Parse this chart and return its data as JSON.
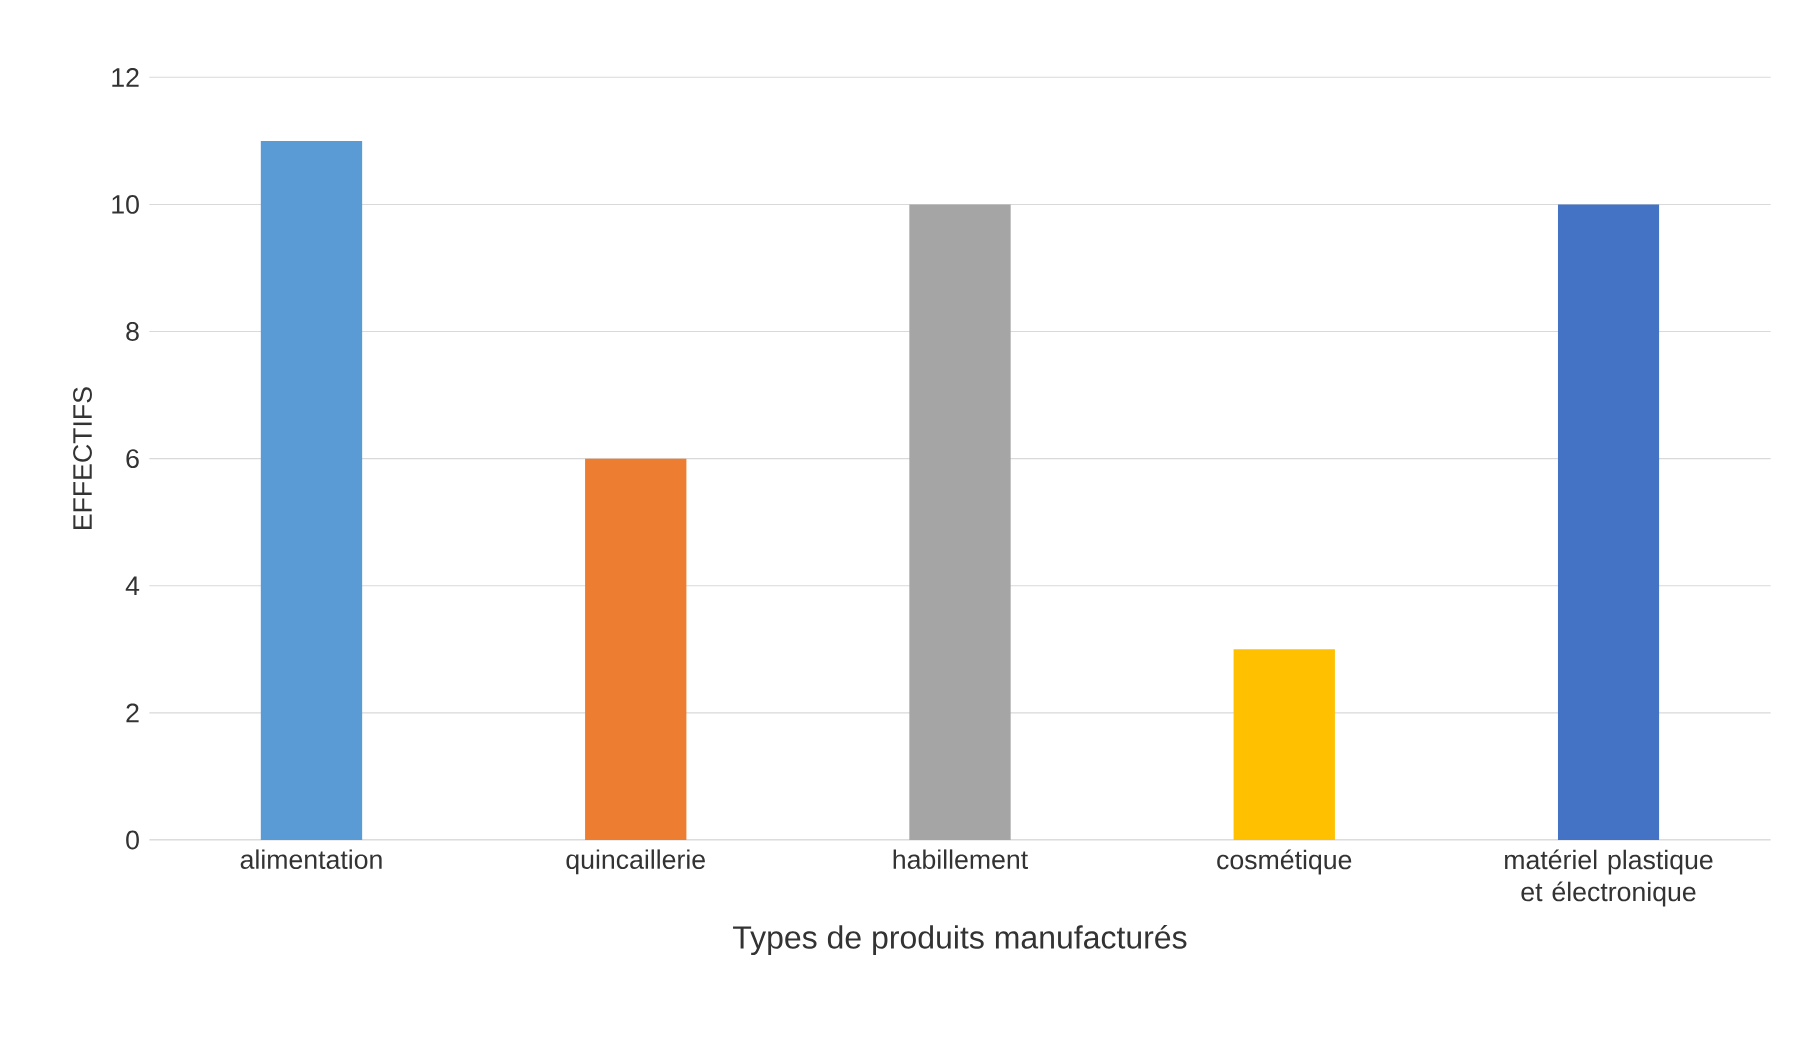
{
  "chart_data": {
    "type": "bar",
    "xlabel": "Types de produits manufacturés",
    "ylabel": "EFFECTIFS",
    "categories": [
      "alimentation",
      "quincaillerie",
      "habillement",
      "cosmétique",
      "matériel plastique et électronique"
    ],
    "values": [
      11,
      6,
      10,
      3,
      10
    ],
    "colors": [
      "#5b9bd5",
      "#ed7d31",
      "#a5a5a5",
      "#ffc000",
      "#4472c4"
    ],
    "ylim": [
      0,
      12
    ],
    "yticks": [
      0,
      2,
      4,
      6,
      8,
      10,
      12
    ],
    "grid": "y"
  }
}
